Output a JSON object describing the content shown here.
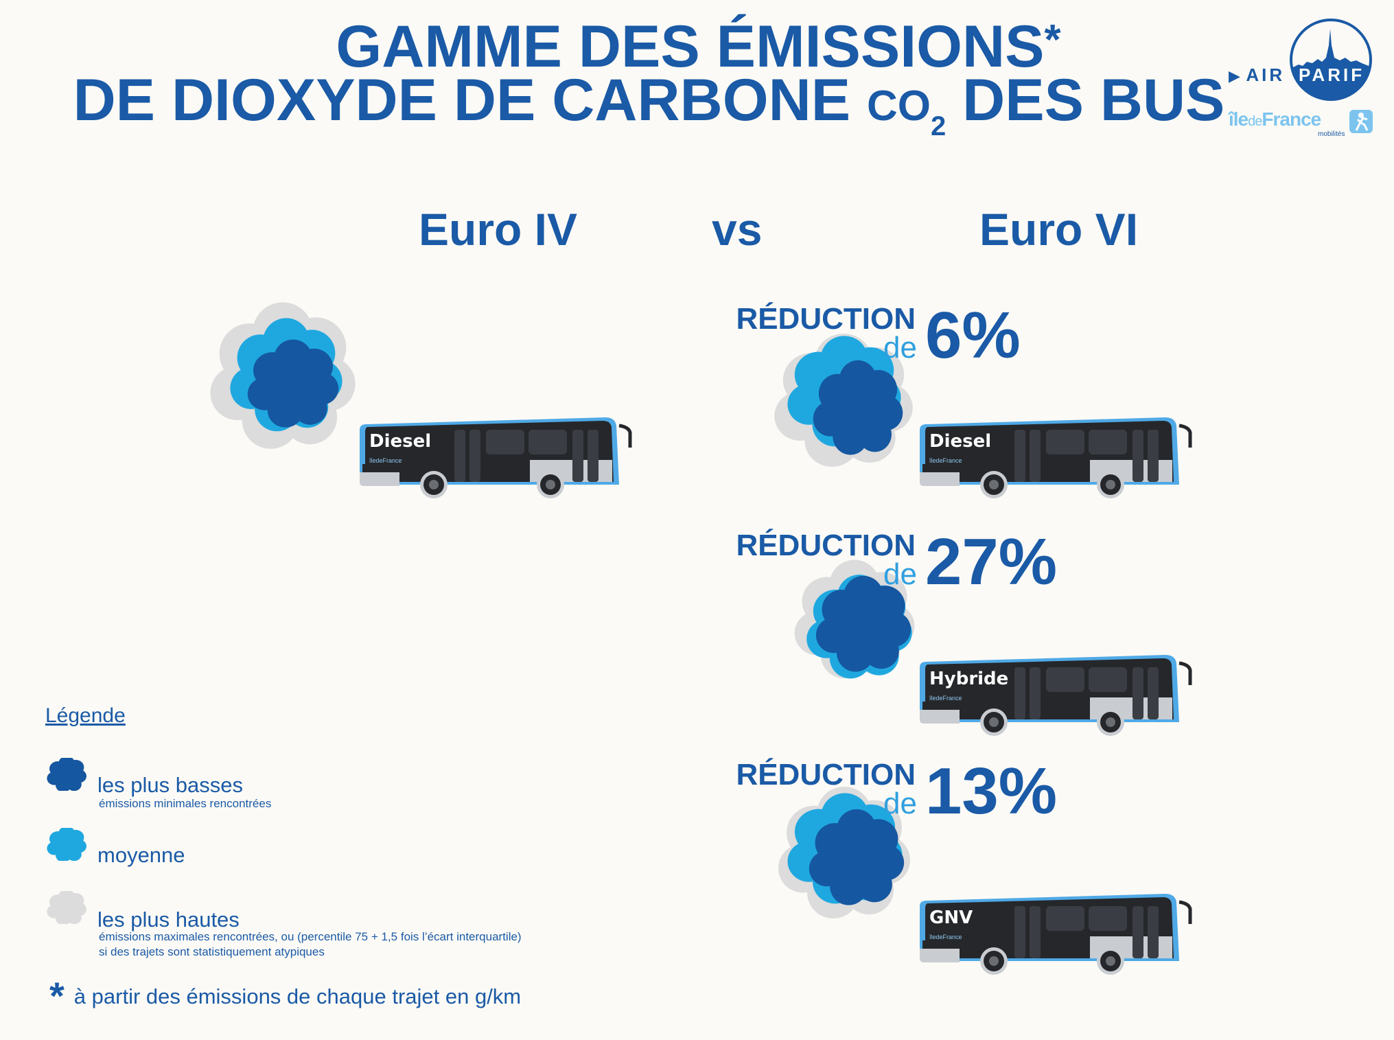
{
  "title": {
    "line1": "GAMME DES ÉMISSIONS",
    "asterisk": "*",
    "line2_part1": "DE DIOXYDE DE CARBONE ",
    "co": "CO",
    "sub2": "2",
    "line2_part2": " DES BUS"
  },
  "logos": {
    "airparif_air": "AIR",
    "airparif_parif": "PARIF",
    "idf_ile": "île",
    "idf_de": "de",
    "idf_france": "France",
    "idf_mobilites": "mobilités"
  },
  "columns": {
    "left": "Euro IV",
    "middle": "vs",
    "right": "Euro VI"
  },
  "euro4": {
    "bus_label": "Diesel"
  },
  "euro6": [
    {
      "reduction": "RÉDUCTION",
      "de": "de",
      "percent": "6%",
      "bus_label": "Diesel"
    },
    {
      "reduction": "RÉDUCTION",
      "de": "de",
      "percent": "27%",
      "bus_label": "Hybride"
    },
    {
      "reduction": "RÉDUCTION",
      "de": "de",
      "percent": "13%",
      "bus_label": "GNV"
    }
  ],
  "bus_logo_text": "îledeFrance",
  "legend": {
    "title": "Légende",
    "low_label": "les plus basses",
    "low_desc": "émissions minimales rencontrées",
    "mid_label": "moyenne",
    "high_label": "les plus hautes",
    "high_desc1": "émissions maximales rencontrées, ou (percentile 75 + 1,5 fois l’écart interquartile)",
    "high_desc2": "si des trajets sont statistiquement atypiques"
  },
  "footnote": {
    "star": "*",
    "text": "à partir des émissions de chaque trajet en g/km"
  },
  "colors": {
    "dark_blue": "#1a5aa6",
    "mid_blue": "#1fa8e0",
    "grey": "#dcdcdc",
    "bus_dark": "#25272b",
    "bus_accent": "#4fa9e6"
  }
}
